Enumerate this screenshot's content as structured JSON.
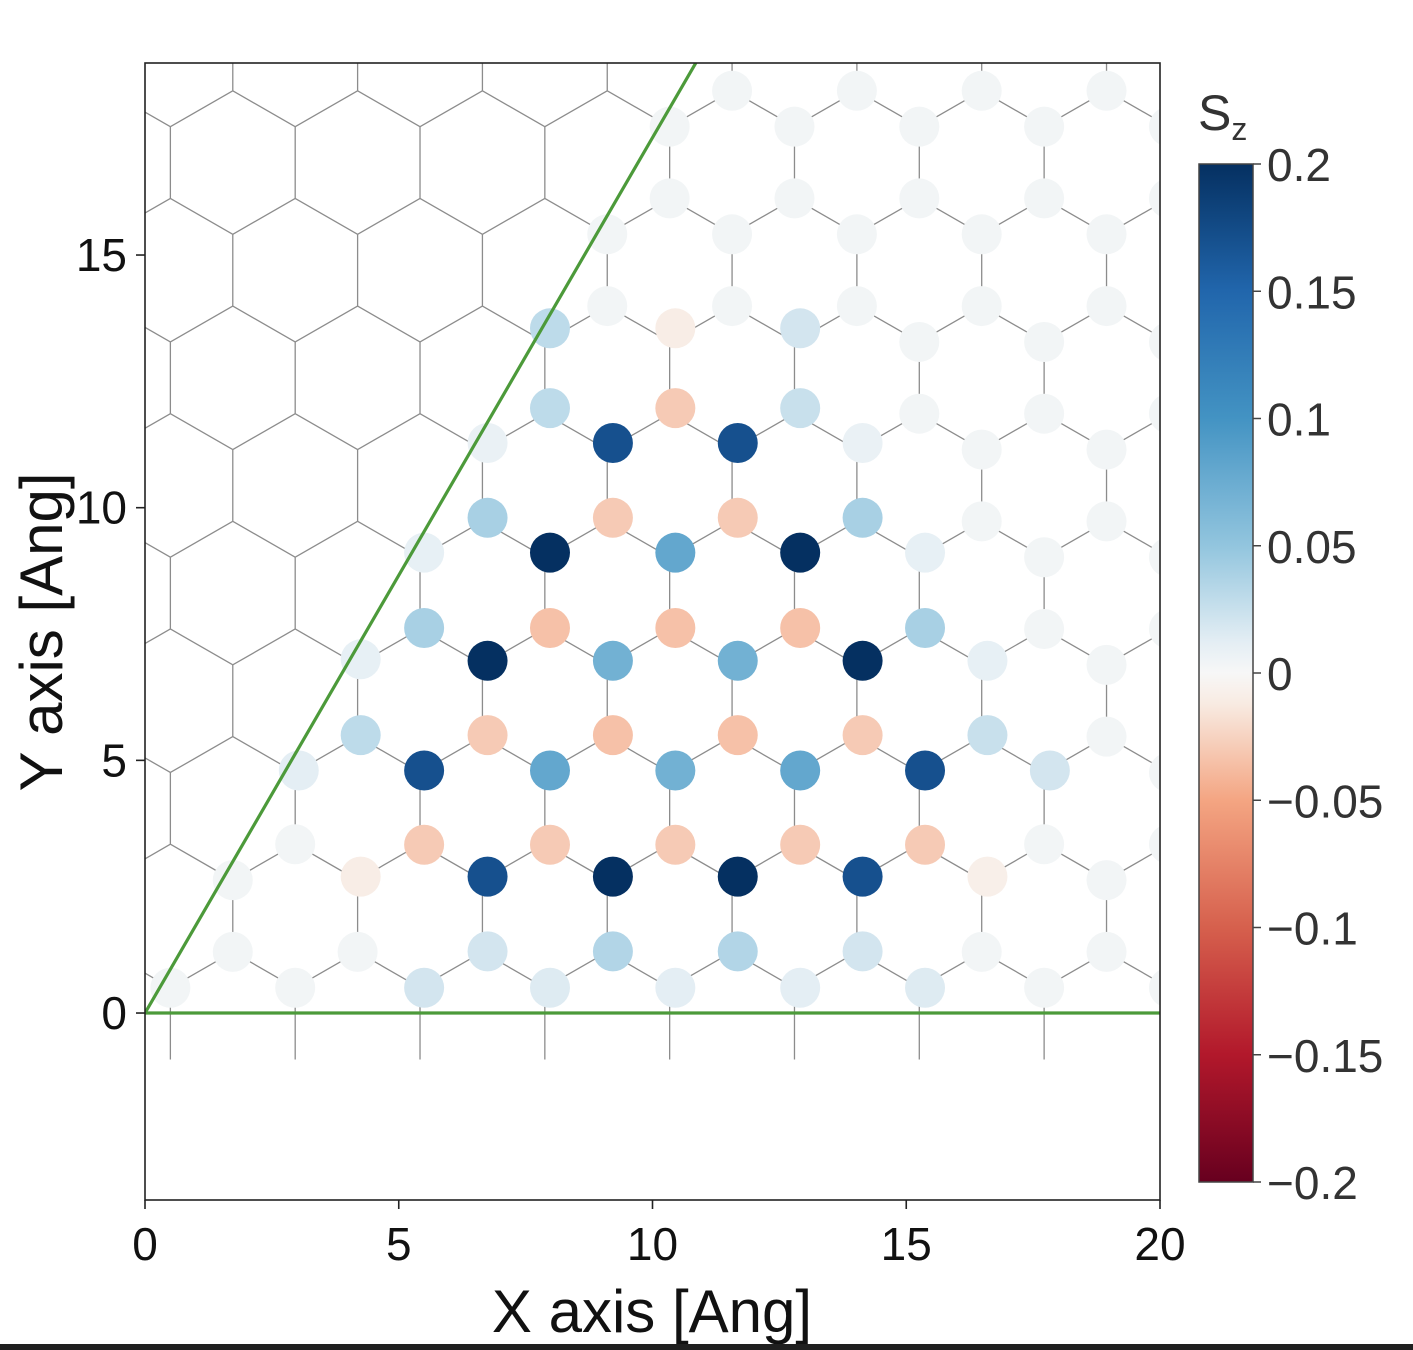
{
  "chart_data": {
    "type": "scatter",
    "title": "",
    "xlabel": "X axis [Ang]",
    "ylabel": "Y axis [Ang]",
    "xlim": [
      0,
      20
    ],
    "ylim": [
      -3.7,
      18.8
    ],
    "xticks": [
      0,
      5,
      10,
      15,
      20
    ],
    "yticks": [
      0,
      5,
      10,
      15
    ],
    "grid": false,
    "legend": "none",
    "colormap": "RdBu",
    "colorbar": {
      "label": "S",
      "label_sub": "z",
      "range": [
        -0.2,
        0.2
      ],
      "ticks": [
        0.2,
        0.15,
        0.1,
        0.05,
        0,
        -0.05,
        -0.1,
        -0.15,
        -0.2
      ],
      "tick_labels": [
        "0.2",
        "0.15",
        "0.1",
        "0.05",
        "0",
        "−0.05",
        "−0.1",
        "−0.15",
        "−0.2"
      ]
    },
    "lattice": {
      "bond_length": 1.42,
      "bond_color": "#8c8c8c",
      "unit_cell_lines_color": "#4c9a3a",
      "unit_cell_lines": [
        {
          "from": [
            0,
            0
          ],
          "to": [
            10.87,
            18.83
          ]
        },
        {
          "from": [
            0,
            0
          ],
          "to": [
            20,
            0
          ]
        }
      ]
    },
    "spin_sites": [
      {
        "x": 5.5,
        "y": 4.8,
        "sz": 0.17
      },
      {
        "x": 6.75,
        "y": 2.7,
        "sz": 0.17
      },
      {
        "x": 9.22,
        "y": 2.7,
        "sz": 0.2
      },
      {
        "x": 11.68,
        "y": 2.7,
        "sz": 0.2
      },
      {
        "x": 14.14,
        "y": 2.7,
        "sz": 0.17
      },
      {
        "x": 15.37,
        "y": 4.8,
        "sz": 0.17
      },
      {
        "x": 6.75,
        "y": 6.97,
        "sz": 0.2
      },
      {
        "x": 14.14,
        "y": 6.97,
        "sz": 0.2
      },
      {
        "x": 7.98,
        "y": 9.11,
        "sz": 0.2
      },
      {
        "x": 12.91,
        "y": 9.11,
        "sz": 0.2
      },
      {
        "x": 9.22,
        "y": 11.28,
        "sz": 0.17
      },
      {
        "x": 11.68,
        "y": 11.28,
        "sz": 0.17
      },
      {
        "x": 7.98,
        "y": 4.8,
        "sz": 0.08
      },
      {
        "x": 10.45,
        "y": 4.8,
        "sz": 0.07
      },
      {
        "x": 12.91,
        "y": 4.8,
        "sz": 0.08
      },
      {
        "x": 9.22,
        "y": 6.97,
        "sz": 0.07
      },
      {
        "x": 11.68,
        "y": 6.97,
        "sz": 0.07
      },
      {
        "x": 10.45,
        "y": 9.11,
        "sz": 0.08
      },
      {
        "x": 5.5,
        "y": 3.33,
        "sz": -0.03
      },
      {
        "x": 7.98,
        "y": 3.33,
        "sz": -0.03
      },
      {
        "x": 10.45,
        "y": 3.33,
        "sz": -0.03
      },
      {
        "x": 12.91,
        "y": 3.33,
        "sz": -0.03
      },
      {
        "x": 15.37,
        "y": 3.33,
        "sz": -0.03
      },
      {
        "x": 6.75,
        "y": 5.5,
        "sz": -0.03
      },
      {
        "x": 9.22,
        "y": 5.5,
        "sz": -0.035
      },
      {
        "x": 11.68,
        "y": 5.5,
        "sz": -0.035
      },
      {
        "x": 14.14,
        "y": 5.5,
        "sz": -0.03
      },
      {
        "x": 7.98,
        "y": 7.62,
        "sz": -0.035
      },
      {
        "x": 10.45,
        "y": 7.62,
        "sz": -0.035
      },
      {
        "x": 12.91,
        "y": 7.62,
        "sz": -0.035
      },
      {
        "x": 9.22,
        "y": 9.8,
        "sz": -0.03
      },
      {
        "x": 11.68,
        "y": 9.8,
        "sz": -0.03
      },
      {
        "x": 10.45,
        "y": 11.97,
        "sz": -0.03
      },
      {
        "x": 6.75,
        "y": 1.22,
        "sz": 0.02
      },
      {
        "x": 9.22,
        "y": 1.22,
        "sz": 0.035
      },
      {
        "x": 11.68,
        "y": 1.22,
        "sz": 0.035
      },
      {
        "x": 14.14,
        "y": 1.22,
        "sz": 0.02
      },
      {
        "x": 5.5,
        "y": 0.5,
        "sz": 0.02
      },
      {
        "x": 7.98,
        "y": 0.5,
        "sz": 0.015
      },
      {
        "x": 10.45,
        "y": 0.5,
        "sz": 0.012
      },
      {
        "x": 12.91,
        "y": 0.5,
        "sz": 0.012
      },
      {
        "x": 15.37,
        "y": 0.5,
        "sz": 0.015
      },
      {
        "x": 4.25,
        "y": 5.5,
        "sz": 0.03
      },
      {
        "x": 5.5,
        "y": 7.62,
        "sz": 0.04
      },
      {
        "x": 6.75,
        "y": 9.8,
        "sz": 0.04
      },
      {
        "x": 7.98,
        "y": 11.97,
        "sz": 0.03
      },
      {
        "x": 7.98,
        "y": 13.55,
        "sz": 0.03
      },
      {
        "x": 12.91,
        "y": 11.97,
        "sz": 0.025
      },
      {
        "x": 12.91,
        "y": 13.55,
        "sz": 0.02
      },
      {
        "x": 14.14,
        "y": 9.8,
        "sz": 0.04
      },
      {
        "x": 15.37,
        "y": 7.62,
        "sz": 0.04
      },
      {
        "x": 16.6,
        "y": 5.5,
        "sz": 0.025
      },
      {
        "x": 17.83,
        "y": 4.8,
        "sz": 0.02
      },
      {
        "x": 3.03,
        "y": 4.8,
        "sz": 0.012
      },
      {
        "x": 4.25,
        "y": 2.7,
        "sz": -0.01
      },
      {
        "x": 16.6,
        "y": 2.7,
        "sz": -0.008
      },
      {
        "x": 10.45,
        "y": 13.55,
        "sz": -0.01
      },
      {
        "x": 4.25,
        "y": 7.0,
        "sz": 0.01
      },
      {
        "x": 5.5,
        "y": 9.11,
        "sz": 0.01
      },
      {
        "x": 6.75,
        "y": 11.28,
        "sz": 0.008
      },
      {
        "x": 14.14,
        "y": 11.28,
        "sz": 0.008
      },
      {
        "x": 15.37,
        "y": 9.11,
        "sz": 0.01
      },
      {
        "x": 16.6,
        "y": 6.97,
        "sz": 0.01
      }
    ],
    "background_site_sz": 0.003
  }
}
